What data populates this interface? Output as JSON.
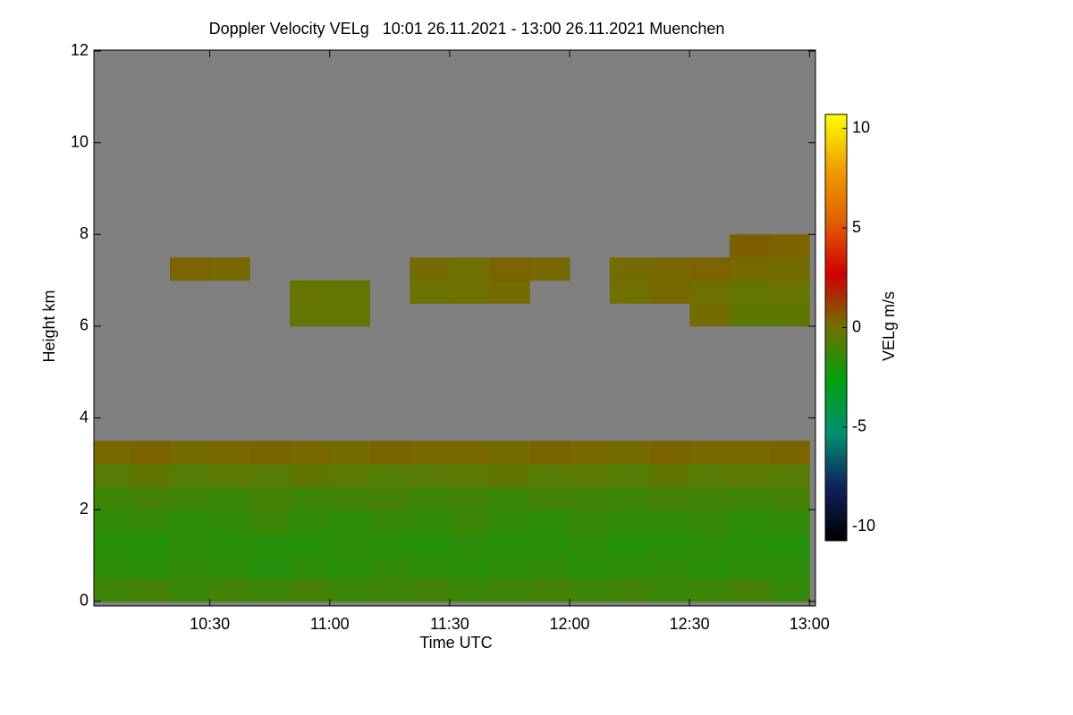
{
  "chart_data": {
    "type": "heatmap",
    "title": "Doppler Velocity VELg   10:01 26.11.2021 - 13:00 26.11.2021 Muenchen",
    "x_label": "Time UTC",
    "y_label": "Height km",
    "colorbar_label": "VELg m/s",
    "xlim": [
      1,
      181.5
    ],
    "xticks": [
      {
        "value": 30,
        "label": "10:30"
      },
      {
        "value": 60,
        "label": "11:00"
      },
      {
        "value": 90,
        "label": "11:30"
      },
      {
        "value": 120,
        "label": "12:00"
      },
      {
        "value": 150,
        "label": "12:30"
      },
      {
        "value": 180,
        "label": "13:00"
      }
    ],
    "ylim": [
      -0.1,
      12.02
    ],
    "yticks": [
      0,
      2,
      4,
      6,
      8,
      10,
      12
    ],
    "zlim": [
      -10.7,
      10.7
    ],
    "cticks": [
      -10,
      -5,
      0,
      5,
      10
    ],
    "colorscale": [
      "#000000",
      "#10205a",
      "#009070",
      "#00a010",
      "#707000",
      "#d00000",
      "#e06000",
      "#f0a000",
      "#ffff00"
    ],
    "background": "#808080",
    "xbins": [
      0,
      10,
      20,
      30,
      40,
      50,
      60,
      70,
      80,
      90,
      100,
      110,
      120,
      130,
      140,
      150,
      160,
      170,
      180
    ],
    "ybins": [
      0,
      0.5,
      1,
      1.5,
      2,
      2.5,
      3,
      3.5,
      4,
      4.5,
      5,
      5.5,
      6,
      6.5,
      7,
      7.5,
      8
    ],
    "z": [
      [
        -1.2,
        -1.0,
        -1.3,
        -1.1,
        -1.2,
        -1.0,
        -1.3,
        -1.2,
        -1.1,
        -1.3,
        -1.2,
        -1.0,
        -1.2,
        -1.1,
        -1.3,
        -1.2,
        -1.0,
        -1.4
      ],
      [
        -1.6,
        -1.7,
        -1.5,
        -1.6,
        -1.8,
        -1.6,
        -1.7,
        -1.5,
        -1.6,
        -1.7,
        -1.6,
        -1.5,
        -1.7,
        -1.6,
        -1.5,
        -1.7,
        -1.6,
        -1.6
      ],
      [
        -1.7,
        -1.8,
        -1.6,
        -1.7,
        -1.7,
        -1.8,
        -1.6,
        -1.7,
        -1.8,
        -1.6,
        -1.7,
        -1.7,
        -1.6,
        -1.8,
        -1.7,
        -1.6,
        -1.7,
        -1.8
      ],
      [
        -1.5,
        -1.4,
        -1.6,
        -1.5,
        -1.3,
        -1.5,
        -1.6,
        -1.4,
        -1.5,
        -1.3,
        -1.5,
        -1.6,
        -1.4,
        -1.5,
        -1.5,
        -1.4,
        -1.6,
        -1.5
      ],
      [
        -1.2,
        -1.0,
        -1.1,
        -1.3,
        -1.0,
        -1.2,
        -1.1,
        -1.0,
        -1.2,
        -1.1,
        -1.3,
        -1.0,
        -1.1,
        -1.2,
        -1.0,
        -1.1,
        -1.2,
        -1.0
      ],
      [
        -0.6,
        -0.4,
        -0.7,
        -0.5,
        -0.6,
        -0.4,
        -0.5,
        -0.7,
        -0.6,
        -0.5,
        -0.4,
        -0.6,
        -0.5,
        -0.7,
        -0.4,
        -0.6,
        -0.5,
        -0.6
      ],
      [
        0.2,
        0.3,
        0.1,
        0.2,
        0.3,
        0.2,
        0.1,
        0.3,
        0.2,
        0.2,
        0.1,
        0.3,
        0.2,
        0.1,
        0.3,
        0.2,
        0.2,
        0.3
      ],
      [
        null,
        null,
        null,
        null,
        null,
        null,
        null,
        null,
        null,
        null,
        null,
        null,
        null,
        null,
        null,
        null,
        null,
        null
      ],
      [
        null,
        null,
        null,
        null,
        null,
        null,
        null,
        null,
        null,
        null,
        null,
        null,
        null,
        null,
        null,
        null,
        null,
        null
      ],
      [
        null,
        null,
        null,
        null,
        null,
        null,
        null,
        null,
        null,
        null,
        null,
        null,
        null,
        null,
        null,
        null,
        null,
        null
      ],
      [
        null,
        null,
        null,
        null,
        null,
        null,
        null,
        null,
        null,
        null,
        null,
        null,
        null,
        null,
        null,
        null,
        null,
        null
      ],
      [
        null,
        null,
        null,
        null,
        null,
        null,
        null,
        null,
        null,
        null,
        null,
        null,
        null,
        null,
        null,
        null,
        null,
        null
      ],
      [
        null,
        null,
        null,
        null,
        null,
        -0.3,
        -0.3,
        null,
        null,
        null,
        null,
        null,
        null,
        null,
        null,
        0.1,
        -0.4,
        -0.4
      ],
      [
        null,
        null,
        null,
        null,
        null,
        -0.2,
        -0.3,
        null,
        -0.1,
        0.0,
        0.1,
        null,
        null,
        0.0,
        0.2,
        0.0,
        -0.3,
        -0.2
      ],
      [
        null,
        null,
        0.3,
        0.2,
        null,
        null,
        null,
        null,
        0.1,
        0.0,
        0.3,
        0.2,
        null,
        0.1,
        0.2,
        0.3,
        0.2,
        0.1
      ],
      [
        null,
        null,
        null,
        null,
        null,
        null,
        null,
        null,
        null,
        null,
        null,
        null,
        null,
        null,
        null,
        null,
        0.4,
        0.3
      ]
    ]
  }
}
